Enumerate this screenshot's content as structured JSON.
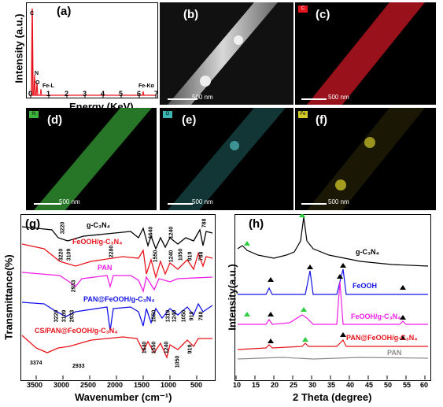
{
  "panel_a": {
    "label": "(a)",
    "ylabel": "Intensity (a.u.)",
    "xlabel": "Energy (KeV)",
    "ticks": [
      "0",
      "1",
      "2",
      "3",
      "4",
      "5",
      "6",
      "7"
    ],
    "peaks": {
      "c": "C",
      "n": "N",
      "o": "O",
      "fel": "Fe-L",
      "feka": "Fe-Kα"
    }
  },
  "maps": {
    "b": {
      "label": "(b)",
      "scale": "500 nm"
    },
    "c": {
      "label": "(c)",
      "scale": "500 nm",
      "tag": "C"
    },
    "d": {
      "label": "(d)",
      "scale": "500 nm",
      "tag": "N"
    },
    "e": {
      "label": "(e)",
      "scale": "500 nm",
      "tag": "O"
    },
    "f": {
      "label": "(f)",
      "scale": "500 nm",
      "tag": "Fe"
    }
  },
  "panel_g": {
    "label": "(g)",
    "ylabel": "Transmittance(%)",
    "xlabel": "Wavenumber (cm⁻¹)",
    "xticks": [
      "3500",
      "3000",
      "2500",
      "2000",
      "1500",
      "1000",
      "500"
    ],
    "series_labels": {
      "gc3n4": "g-C₃N₄",
      "feooh": "FeOOH/g-C₃N₄",
      "pan": "PAN",
      "panfe": "PAN@FeOOH/g-C₃N₄",
      "cs": "CS/PAN@FeOOH/g-C₃N₄"
    },
    "annotations": {
      "a1": "3220",
      "a2": "1640",
      "a3": "1240",
      "a4": "788",
      "b1": "3220",
      "b2": "3109",
      "b3": "2280",
      "b4": "1550",
      "b5": "1240",
      "b6": "1050",
      "b7": "919",
      "b8": "788",
      "c1": "2933",
      "d1": "3220",
      "d2": "3109",
      "d3": "2933",
      "d4": "1550",
      "d5": "1319",
      "d6": "1240",
      "d7": "1050",
      "d8": "919",
      "d9": "788",
      "e1": "3374",
      "e2": "2933",
      "e3": "1640",
      "e4": "1550",
      "e5": "1240",
      "e6": "1050",
      "e7": "919"
    }
  },
  "panel_h": {
    "label": "(h)",
    "ylabel": "Intensity(a.u.)",
    "xlabel": "2 Theta (degree)",
    "xticks": [
      "10",
      "15",
      "20",
      "25",
      "30",
      "35",
      "40",
      "45",
      "50",
      "55",
      "60"
    ],
    "series_labels": {
      "gc3n4": "g-C₃N₄",
      "feooh": "FeOOH",
      "feoohg": "FeOOH/g-C₃N₄",
      "panfe": "PAN@FeOOH/g-C₃N₄",
      "pan": "PAN"
    }
  },
  "colors": {
    "black": "#000000",
    "red": "#e8141c",
    "magenta": "#f01ee6",
    "blue": "#1414e6",
    "gray": "#8c8c8c",
    "map_c": "#b4141e",
    "map_n": "#3cb43c",
    "map_o": "#3cb4b4",
    "map_fe": "#d2c828",
    "peak_green": "#2ecc40"
  }
}
